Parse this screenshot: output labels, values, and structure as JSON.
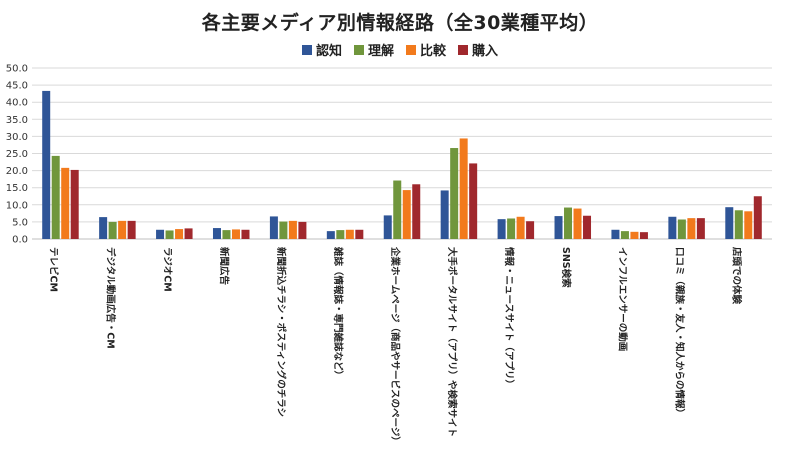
{
  "chart_data": {
    "type": "bar",
    "title": "各主要メディア別情報経路（全30業種平均）",
    "categories": [
      "テレビCM",
      "デジタル動画広告・CM",
      "ラジオCM",
      "新聞広告",
      "新聞折込チラシ・ポスティングのチラシ",
      "雑誌（情報誌・専門雑誌など）",
      "企業ホームページ（商品やサービスのページ）",
      "大手ポータルサイト（アプリ）や検索サイト",
      "情報・ニュースサイト（アプリ）",
      "SNS検索",
      "インフルエンサーの動画",
      "口コミ（親族・友人・知人からの情報）",
      "店頭での体験"
    ],
    "series": [
      {
        "name": "認知",
        "color": "#2F5597",
        "values": [
          43.3,
          6.4,
          2.7,
          3.2,
          6.6,
          2.3,
          6.9,
          14.2,
          5.8,
          6.7,
          2.7,
          6.5,
          9.3
        ]
      },
      {
        "name": "理解",
        "color": "#70963C",
        "values": [
          24.3,
          5.0,
          2.5,
          2.6,
          5.1,
          2.6,
          17.1,
          26.6,
          6.0,
          9.2,
          2.3,
          5.7,
          8.4
        ]
      },
      {
        "name": "比較",
        "color": "#F27A1C",
        "values": [
          20.8,
          5.3,
          2.9,
          2.8,
          5.3,
          2.7,
          14.3,
          29.4,
          6.5,
          8.9,
          2.1,
          6.1,
          8.1
        ]
      },
      {
        "name": "購入",
        "color": "#A0282D",
        "values": [
          20.2,
          5.3,
          3.1,
          2.7,
          5.0,
          2.7,
          16.0,
          22.1,
          5.2,
          6.8,
          2.0,
          6.1,
          12.5
        ]
      }
    ],
    "yticks": [
      "0.0",
      "5.0",
      "10.0",
      "15.0",
      "20.0",
      "25.0",
      "30.0",
      "35.0",
      "40.0",
      "45.0",
      "50.0"
    ],
    "ylim": [
      0,
      50
    ],
    "xlabel": "",
    "ylabel": "",
    "grid": true,
    "legend_position": "top-center"
  }
}
